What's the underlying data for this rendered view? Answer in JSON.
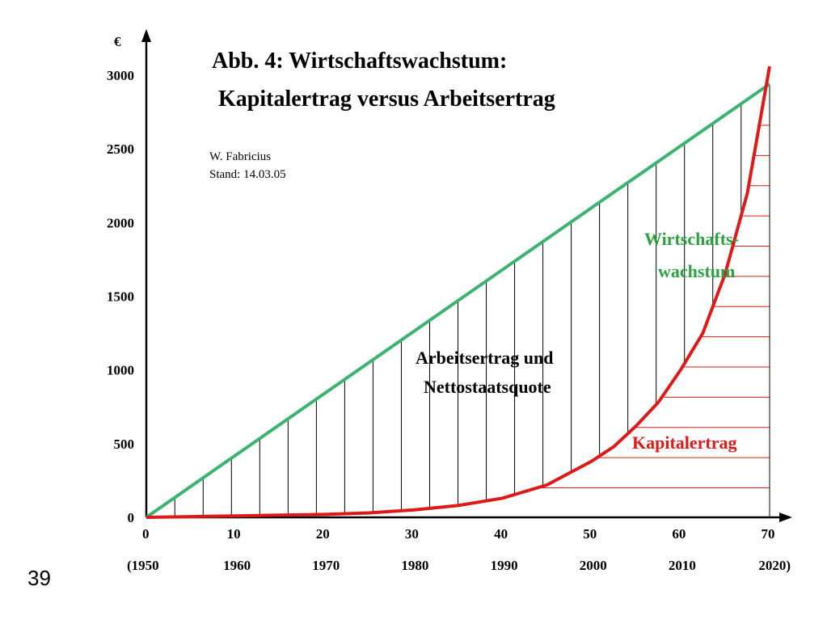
{
  "slide_number": "39",
  "chart_data": {
    "type": "line",
    "title": "Abb. 4: Wirtschaftswachstum:",
    "subtitle": "Kapitalertrag versus Arbeitsertrag",
    "author": "W. Fabricius",
    "date_note": "Stand: 14.03.05",
    "y_unit": "€",
    "xlim": [
      0,
      70
    ],
    "ylim": [
      0,
      3000
    ],
    "x_ticks": [
      0,
      10,
      20,
      30,
      40,
      50,
      60,
      70
    ],
    "x_tick_labels": [
      "0",
      "10",
      "20",
      "30",
      "40",
      "50",
      "60",
      "70"
    ],
    "year_labels": [
      "(1950",
      "1960",
      "1970",
      "1980",
      "1990",
      "2000",
      "2010",
      "2020)"
    ],
    "y_ticks": [
      0,
      500,
      1000,
      1500,
      2000,
      2500,
      3000
    ],
    "y_tick_labels": [
      "0",
      "500",
      "1000",
      "1500",
      "2000",
      "2500",
      "3000"
    ],
    "colors": {
      "growth": "#3cb371",
      "capital": "#dd1a1a",
      "hatch_black": "#000000",
      "hatch_red": "#dd1a1a",
      "growth_label": "#2ea043"
    },
    "series": [
      {
        "name": "Wirtschaftswachstum",
        "x": [
          0,
          70
        ],
        "y": [
          0,
          2940
        ]
      },
      {
        "name": "Kapitalertrag",
        "x": [
          0,
          5,
          10,
          15,
          20,
          25,
          30,
          35,
          40,
          45,
          50,
          52.5,
          55,
          57.5,
          60,
          62.5,
          65,
          67.5,
          70
        ],
        "y": [
          0,
          5,
          10,
          15,
          20,
          30,
          50,
          80,
          130,
          220,
          380,
          480,
          620,
          780,
          1000,
          1250,
          1650,
          2200,
          3060
        ]
      }
    ],
    "annotations": [
      {
        "text": "Wirtschafts-",
        "color": "growth_label"
      },
      {
        "text": "wachstum",
        "color": "growth_label"
      },
      {
        "text": "Arbeitsertrag und",
        "color": "hatch_black"
      },
      {
        "text": "Nettostaatsquote",
        "color": "hatch_black"
      },
      {
        "text": "Kapitalertrag",
        "color": "capital"
      }
    ]
  }
}
